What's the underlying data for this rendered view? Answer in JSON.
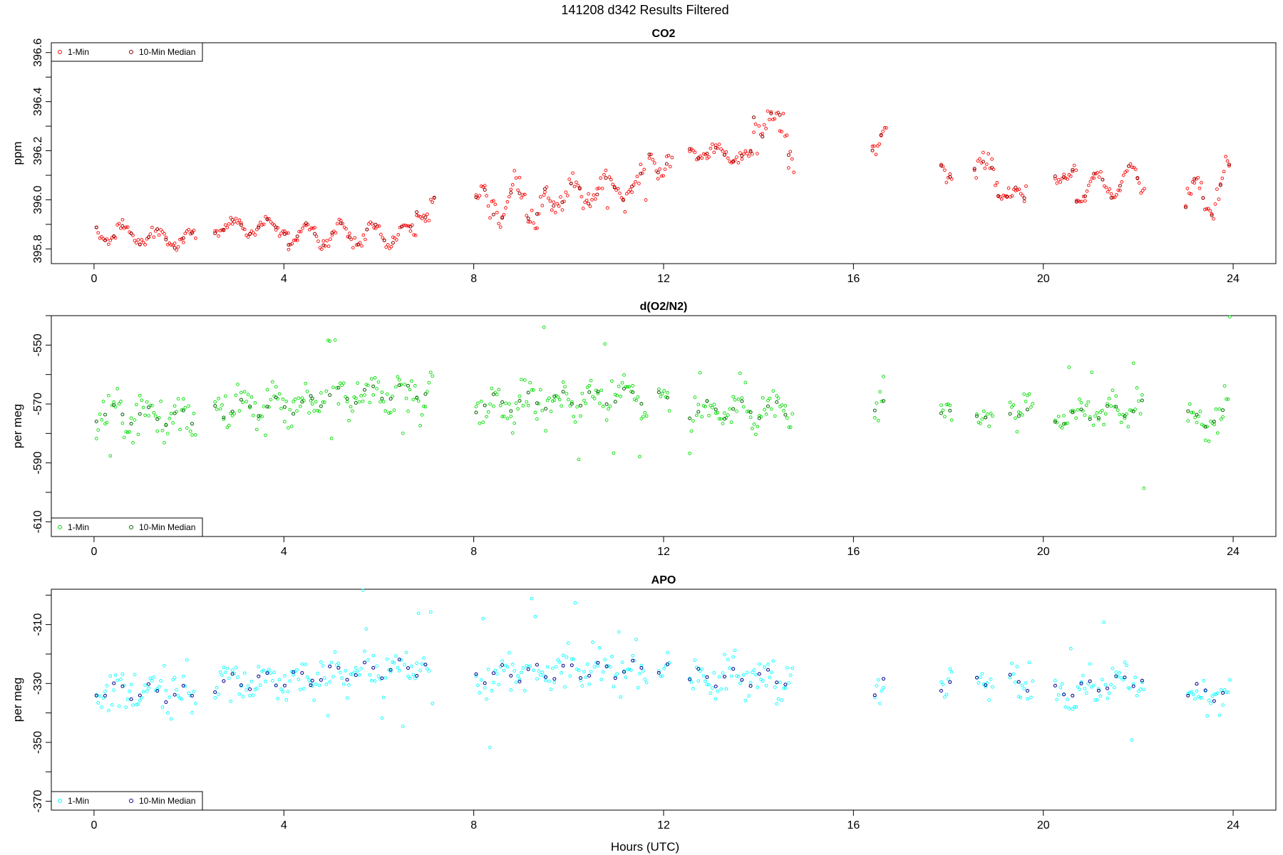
{
  "figure": {
    "title": "141208    d342    Results Filtered",
    "xlabel": "Hours (UTC)"
  },
  "chart_data": [
    {
      "type": "scatter",
      "title": "CO2",
      "ylabel": "ppm",
      "xlim": [
        -0.9,
        24.9
      ],
      "ylim": [
        395.74,
        396.64
      ],
      "xticks": [
        0,
        4,
        8,
        12,
        16,
        20,
        24
      ],
      "yticks": [
        395.8,
        396.0,
        396.2,
        396.4,
        396.6
      ],
      "ytick_labels": [
        "395.8",
        "396.0",
        "396.2",
        "396.4",
        "396.6"
      ],
      "legend": {
        "placement": "top-left",
        "entries": [
          "1-Min",
          "10-Min Median"
        ]
      },
      "series_colors": [
        "#ff0000",
        "#8b0000"
      ],
      "segments": [
        {
          "x0": 0.05,
          "x1": 2.15,
          "base": 395.87,
          "amp": 0.035,
          "noise": 0.02,
          "spike": 0.0,
          "trend": -0.04
        },
        {
          "x0": 2.55,
          "x1": 4.1,
          "base": 395.89,
          "amp": 0.03,
          "noise": 0.018,
          "spike": 0.0,
          "trend": 0.0
        },
        {
          "x0": 4.1,
          "x1": 6.8,
          "base": 395.86,
          "amp": 0.045,
          "noise": 0.025,
          "spike": 0.04,
          "trend": 0.0
        },
        {
          "x0": 6.8,
          "x1": 7.2,
          "base": 395.93,
          "amp": 0.05,
          "noise": 0.03,
          "spike": 0.06,
          "trend": 0.1
        },
        {
          "x0": 8.05,
          "x1": 9.5,
          "base": 395.98,
          "amp": 0.07,
          "noise": 0.05,
          "spike": 0.12,
          "trend": 0.0
        },
        {
          "x0": 9.5,
          "x1": 11.65,
          "base": 396.01,
          "amp": 0.05,
          "noise": 0.04,
          "spike": 0.12,
          "trend": 0.05
        },
        {
          "x0": 11.7,
          "x1": 12.2,
          "base": 396.18,
          "amp": 0.05,
          "noise": 0.04,
          "spike": 0.1,
          "trend": -0.05
        },
        {
          "x0": 12.55,
          "x1": 13.9,
          "base": 396.2,
          "amp": 0.025,
          "noise": 0.018,
          "spike": 0.0,
          "trend": -0.03
        },
        {
          "x0": 13.9,
          "x1": 14.75,
          "base": 396.37,
          "amp": 0.09,
          "noise": 0.06,
          "spike": 0.1,
          "trend": -0.15
        },
        {
          "x0": 16.4,
          "x1": 16.7,
          "base": 396.24,
          "amp": 0.04,
          "noise": 0.03,
          "spike": 0.08,
          "trend": 0.02
        },
        {
          "x0": 17.85,
          "x1": 18.1,
          "base": 396.15,
          "amp": 0.03,
          "noise": 0.02,
          "spike": 0.0,
          "trend": -0.04
        },
        {
          "x0": 18.55,
          "x1": 19.05,
          "base": 396.16,
          "amp": 0.04,
          "noise": 0.04,
          "spike": 0.1,
          "trend": -0.08
        },
        {
          "x0": 19.05,
          "x1": 19.65,
          "base": 396.05,
          "amp": 0.04,
          "noise": 0.03,
          "spike": 0.06,
          "trend": -0.06
        },
        {
          "x0": 20.25,
          "x1": 20.7,
          "base": 396.12,
          "amp": 0.03,
          "noise": 0.03,
          "spike": 0.06,
          "trend": -0.03
        },
        {
          "x0": 20.7,
          "x1": 22.15,
          "base": 396.04,
          "amp": 0.06,
          "noise": 0.025,
          "spike": 0.0,
          "trend": 0.05
        },
        {
          "x0": 23.0,
          "x1": 23.95,
          "base": 395.98,
          "amp": 0.09,
          "noise": 0.04,
          "spike": 0.0,
          "trend": 0.08
        }
      ]
    },
    {
      "type": "scatter",
      "title": "d(O2/N2)",
      "ylabel": "per meg",
      "xlim": [
        -0.9,
        24.9
      ],
      "ylim": [
        -615,
        -540
      ],
      "xticks": [
        0,
        4,
        8,
        12,
        16,
        20,
        24
      ],
      "yticks": [
        -610,
        -590,
        -570,
        -550
      ],
      "ytick_labels": [
        "-610",
        "-590",
        "-570",
        "-550"
      ],
      "legend": {
        "placement": "bottom-left",
        "entries": [
          "1-Min",
          "10-Min Median"
        ]
      },
      "series_colors": [
        "#00dd00",
        "#006400"
      ],
      "segments": [
        {
          "x0": 0.05,
          "x1": 2.15,
          "base": -573,
          "amp": 3,
          "noise": 5.5,
          "spike": 18,
          "trend": -2
        },
        {
          "x0": 2.55,
          "x1": 4.6,
          "base": -572,
          "amp": 3,
          "noise": 5.5,
          "spike": 12,
          "trend": 2
        },
        {
          "x0": 4.6,
          "x1": 7.15,
          "base": -568,
          "amp": 3,
          "noise": 6,
          "spike": 20,
          "trend": 3
        },
        {
          "x0": 8.05,
          "x1": 11.65,
          "base": -570,
          "amp": 3,
          "noise": 6,
          "spike": 27,
          "trend": 3
        },
        {
          "x0": 11.9,
          "x1": 12.15,
          "base": -568,
          "amp": 2,
          "noise": 3,
          "spike": 0,
          "trend": 0
        },
        {
          "x0": 12.55,
          "x1": 14.75,
          "base": -572,
          "amp": 3,
          "noise": 6,
          "spike": 15,
          "trend": 0
        },
        {
          "x0": 16.45,
          "x1": 16.65,
          "base": -575,
          "amp": 3,
          "noise": 7,
          "spike": 18,
          "trend": 8
        },
        {
          "x0": 17.85,
          "x1": 18.1,
          "base": -574,
          "amp": 2,
          "noise": 4,
          "spike": 0,
          "trend": 0
        },
        {
          "x0": 18.6,
          "x1": 18.95,
          "base": -573,
          "amp": 2,
          "noise": 4,
          "spike": 0,
          "trend": 0
        },
        {
          "x0": 19.3,
          "x1": 19.8,
          "base": -572,
          "amp": 2,
          "noise": 5,
          "spike": 10,
          "trend": -2
        },
        {
          "x0": 20.25,
          "x1": 22.15,
          "base": -575,
          "amp": 2.5,
          "noise": 4.5,
          "spike": 28,
          "trend": 4
        },
        {
          "x0": 23.05,
          "x1": 23.95,
          "base": -575,
          "amp": 3,
          "noise": 6,
          "spike": 35,
          "trend": 0
        }
      ]
    },
    {
      "type": "scatter",
      "title": "APO",
      "ylabel": "per meg",
      "xlim": [
        -0.9,
        24.9
      ],
      "ylim": [
        -373,
        -298
      ],
      "xticks": [
        0,
        4,
        8,
        12,
        16,
        20,
        24
      ],
      "yticks": [
        -370,
        -350,
        -330,
        -310
      ],
      "ytick_labels": [
        "-370",
        "-350",
        "-330",
        "-310"
      ],
      "legend": {
        "placement": "bottom-left",
        "entries": [
          "1-Min",
          "10-Min Median"
        ]
      },
      "series_colors": [
        "#00ffff",
        "#00008b"
      ],
      "segments": [
        {
          "x0": 0.05,
          "x1": 2.15,
          "base": -332,
          "amp": 3,
          "noise": 6,
          "spike": 18,
          "trend": -2
        },
        {
          "x0": 2.55,
          "x1": 4.6,
          "base": -330,
          "amp": 3,
          "noise": 5.5,
          "spike": 12,
          "trend": 2
        },
        {
          "x0": 4.6,
          "x1": 7.15,
          "base": -327,
          "amp": 3,
          "noise": 6,
          "spike": 22,
          "trend": 3
        },
        {
          "x0": 8.05,
          "x1": 11.65,
          "base": -327,
          "amp": 3,
          "noise": 6,
          "spike": 27,
          "trend": 2
        },
        {
          "x0": 11.9,
          "x1": 12.15,
          "base": -325,
          "amp": 2,
          "noise": 3,
          "spike": 0,
          "trend": 0
        },
        {
          "x0": 12.55,
          "x1": 14.75,
          "base": -328,
          "amp": 3,
          "noise": 6,
          "spike": 15,
          "trend": 0
        },
        {
          "x0": 16.45,
          "x1": 16.65,
          "base": -333,
          "amp": 3,
          "noise": 7,
          "spike": 18,
          "trend": 8
        },
        {
          "x0": 17.85,
          "x1": 18.1,
          "base": -331,
          "amp": 2,
          "noise": 4,
          "spike": 0,
          "trend": 0
        },
        {
          "x0": 18.6,
          "x1": 18.95,
          "base": -330,
          "amp": 2,
          "noise": 4,
          "spike": 0,
          "trend": 0
        },
        {
          "x0": 19.3,
          "x1": 19.8,
          "base": -329,
          "amp": 2,
          "noise": 5,
          "spike": 10,
          "trend": -2
        },
        {
          "x0": 20.25,
          "x1": 22.15,
          "base": -333,
          "amp": 2.5,
          "noise": 4.5,
          "spike": 28,
          "trend": 5
        },
        {
          "x0": 23.05,
          "x1": 23.95,
          "base": -333,
          "amp": 3,
          "noise": 6,
          "spike": 35,
          "trend": 0
        }
      ]
    }
  ]
}
